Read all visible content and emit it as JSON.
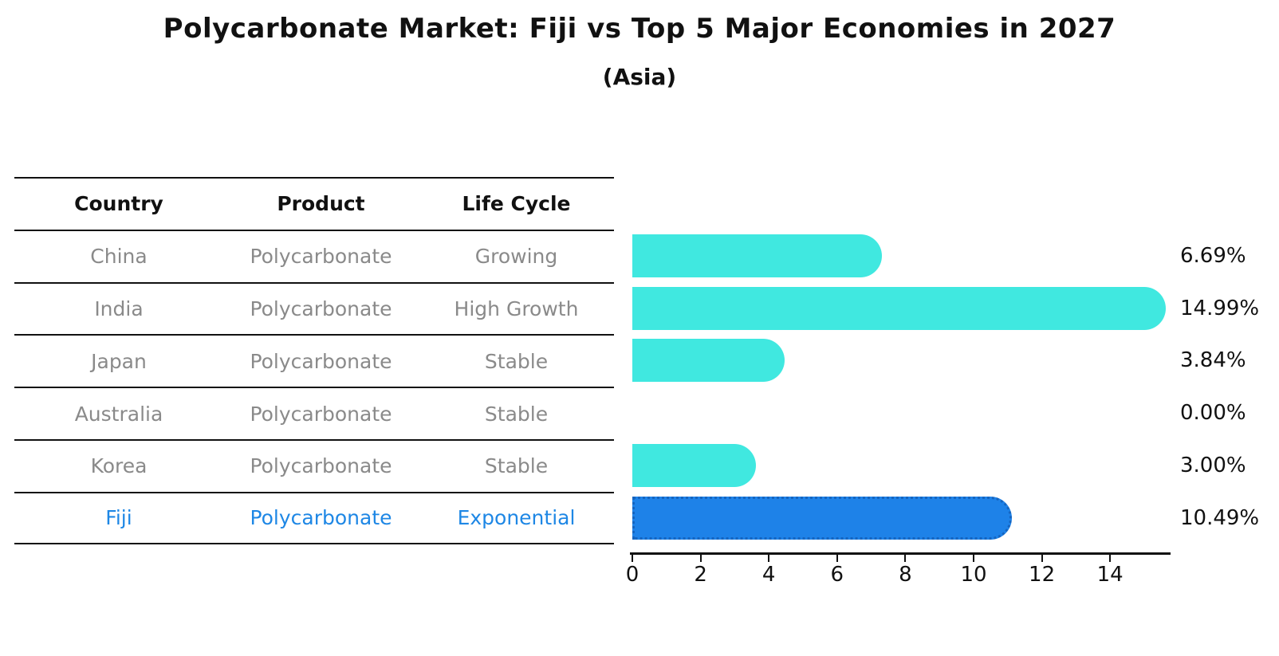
{
  "title": "Polycarbonate Market: Fiji vs Top 5 Major Economies in 2027",
  "subtitle": "(Asia)",
  "table": {
    "headers": [
      "Country",
      "Product",
      "Life Cycle"
    ],
    "rows": [
      {
        "country": "China",
        "product": "Polycarbonate",
        "life_cycle": "Growing",
        "highlight": false
      },
      {
        "country": "India",
        "product": "Polycarbonate",
        "life_cycle": "High Growth",
        "highlight": false
      },
      {
        "country": "Japan",
        "product": "Polycarbonate",
        "life_cycle": "Stable",
        "highlight": false
      },
      {
        "country": "Australia",
        "product": "Polycarbonate",
        "life_cycle": "Stable",
        "highlight": false
      },
      {
        "country": "Korea",
        "product": "Polycarbonate",
        "life_cycle": "Stable",
        "highlight": false
      },
      {
        "country": "Fiji",
        "product": "Polycarbonate",
        "life_cycle": "Exponential",
        "highlight": true
      }
    ]
  },
  "chart_data": {
    "type": "bar",
    "orientation": "horizontal",
    "title": "Polycarbonate Market: Fiji vs Top 5 Major Economies in 2027",
    "subtitle": "(Asia)",
    "categories": [
      "China",
      "India",
      "Japan",
      "Australia",
      "Korea",
      "Fiji"
    ],
    "values": [
      6.69,
      14.99,
      3.84,
      0.0,
      3.0,
      10.49
    ],
    "value_labels": [
      "6.69%",
      "14.99%",
      "3.84%",
      "0.00%",
      "3.00%",
      "10.49%"
    ],
    "unit": "percent",
    "x_ticks": [
      0,
      2,
      4,
      6,
      8,
      10,
      12,
      14
    ],
    "xlim": [
      0,
      15.8
    ],
    "grid": false,
    "legend": false,
    "highlight_index": 5,
    "colors": {
      "bar": "#40e8e0",
      "highlight_bar": "#1e82e8",
      "highlight_border": "#1565c0",
      "highlight_text": "#1e87e5",
      "row_text": "#8a8a8a",
      "header_text": "#111111",
      "axis": "#111111",
      "value_label": "#111111"
    }
  }
}
